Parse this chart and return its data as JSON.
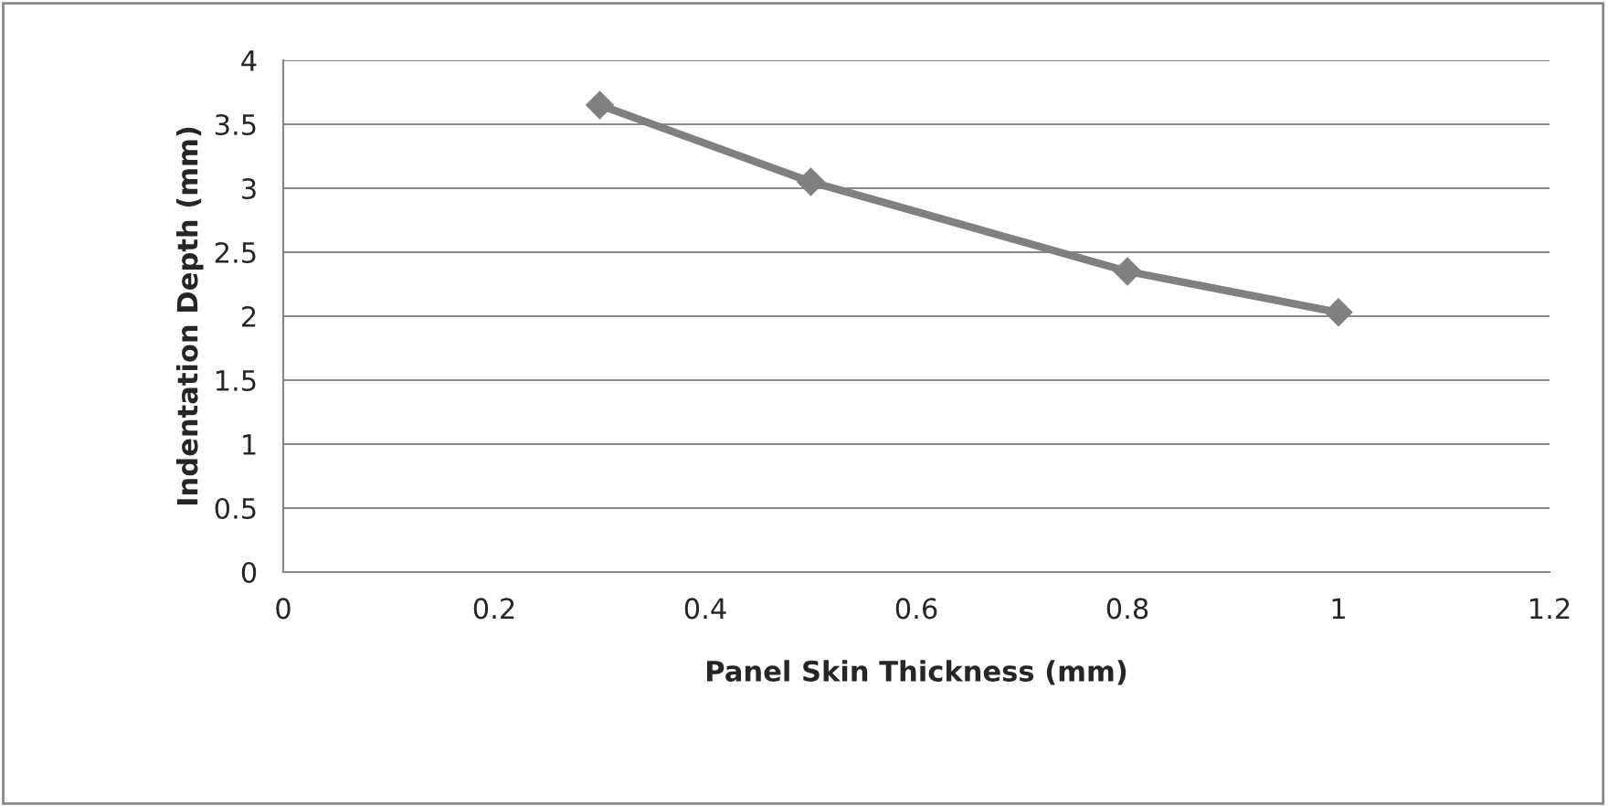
{
  "chart_data": {
    "type": "line",
    "xlabel": "Panel Skin Thickness (mm)",
    "ylabel": "Indentation Depth (mm)",
    "x": [
      0.3,
      0.5,
      0.8,
      1.0
    ],
    "series": [
      {
        "color": "#808080",
        "values": [
          3.65,
          3.05,
          2.35,
          2.03
        ]
      }
    ],
    "xlim": [
      0,
      1.2
    ],
    "xticks": [
      0,
      0.2,
      0.4,
      0.6,
      0.8,
      1,
      1.2
    ],
    "ylim": [
      0,
      4
    ],
    "yticks": [
      0,
      0.5,
      1,
      1.5,
      2,
      2.5,
      3,
      3.5,
      4
    ],
    "grid": "y",
    "marker": "diamond",
    "line_style": "solid",
    "legend": false
  }
}
